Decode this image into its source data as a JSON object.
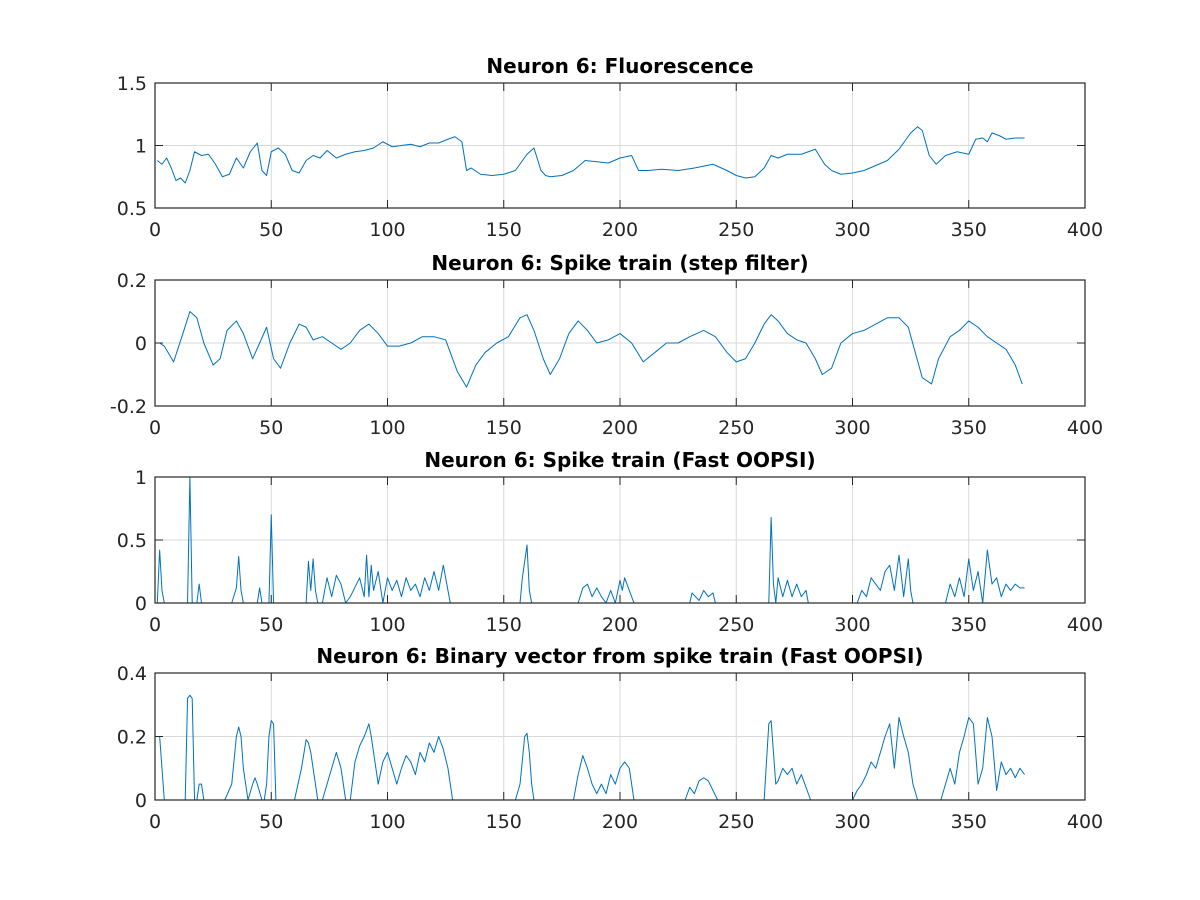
{
  "chart_data": [
    {
      "type": "line",
      "title": "Neuron 6: Fluorescence",
      "xlabel": "",
      "ylabel": "",
      "xlim": [
        0,
        400
      ],
      "ylim": [
        0.5,
        1.5
      ],
      "xticks": [
        0,
        50,
        100,
        150,
        200,
        250,
        300,
        350,
        400
      ],
      "yticks": [
        0.5,
        1,
        1.5
      ],
      "xtick_labels": [
        "0",
        "50",
        "100",
        "150",
        "200",
        "250",
        "300",
        "350",
        "400"
      ],
      "ytick_labels": [
        "0.5",
        "1",
        "1.5"
      ],
      "grid": true,
      "series": [
        {
          "color": "#0072bd",
          "x": [
            1,
            3,
            5,
            7,
            9,
            11,
            13,
            15,
            17,
            20,
            23,
            26,
            29,
            32,
            35,
            38,
            41,
            44,
            46,
            48,
            50,
            53,
            56,
            59,
            62,
            65,
            68,
            71,
            74,
            78,
            82,
            86,
            90,
            94,
            98,
            102,
            106,
            110,
            114,
            118,
            122,
            126,
            129,
            132,
            134,
            136,
            140,
            145,
            150,
            155,
            160,
            163,
            166,
            168,
            170,
            175,
            180,
            185,
            190,
            195,
            200,
            205,
            208,
            212,
            218,
            225,
            232,
            240,
            246,
            250,
            254,
            258,
            262,
            265,
            268,
            272,
            278,
            284,
            288,
            291,
            295,
            300,
            305,
            310,
            315,
            320,
            325,
            328,
            330,
            333,
            336,
            340,
            345,
            350,
            353,
            356,
            358,
            360,
            363,
            366,
            370,
            374
          ],
          "y": [
            0.88,
            0.85,
            0.9,
            0.82,
            0.72,
            0.74,
            0.7,
            0.8,
            0.95,
            0.92,
            0.93,
            0.85,
            0.75,
            0.77,
            0.9,
            0.82,
            0.95,
            1.02,
            0.8,
            0.76,
            0.95,
            0.98,
            0.93,
            0.8,
            0.78,
            0.88,
            0.92,
            0.9,
            0.96,
            0.9,
            0.93,
            0.95,
            0.96,
            0.98,
            1.03,
            0.99,
            1.0,
            1.01,
            0.99,
            1.02,
            1.02,
            1.05,
            1.07,
            1.03,
            0.8,
            0.82,
            0.77,
            0.76,
            0.77,
            0.8,
            0.93,
            0.98,
            0.8,
            0.76,
            0.75,
            0.76,
            0.8,
            0.88,
            0.87,
            0.86,
            0.9,
            0.92,
            0.8,
            0.8,
            0.81,
            0.8,
            0.82,
            0.85,
            0.8,
            0.76,
            0.74,
            0.75,
            0.82,
            0.92,
            0.9,
            0.93,
            0.93,
            0.97,
            0.85,
            0.8,
            0.77,
            0.78,
            0.8,
            0.84,
            0.88,
            0.97,
            1.1,
            1.15,
            1.12,
            0.92,
            0.85,
            0.92,
            0.95,
            0.93,
            1.05,
            1.06,
            1.03,
            1.1,
            1.08,
            1.05,
            1.06,
            1.06
          ]
        }
      ]
    },
    {
      "type": "line",
      "title": "Neuron 6: Spike train (step filter)",
      "xlabel": "",
      "ylabel": "",
      "xlim": [
        0,
        400
      ],
      "ylim": [
        -0.2,
        0.2
      ],
      "xticks": [
        0,
        50,
        100,
        150,
        200,
        250,
        300,
        350,
        400
      ],
      "yticks": [
        -0.2,
        0,
        0.2
      ],
      "xtick_labels": [
        "0",
        "50",
        "100",
        "150",
        "200",
        "250",
        "300",
        "350",
        "400"
      ],
      "ytick_labels": [
        "-0.2",
        "0",
        "0.2"
      ],
      "grid": true,
      "series": [
        {
          "color": "#0072bd",
          "x": [
            2,
            4,
            8,
            12,
            15,
            18,
            21,
            25,
            28,
            31,
            35,
            38,
            42,
            45,
            48,
            51,
            54,
            58,
            62,
            65,
            68,
            72,
            76,
            80,
            84,
            88,
            92,
            96,
            100,
            105,
            110,
            115,
            120,
            125,
            130,
            134,
            138,
            142,
            147,
            152,
            157,
            160,
            163,
            167,
            170,
            174,
            178,
            182,
            186,
            190,
            195,
            200,
            205,
            210,
            215,
            220,
            225,
            230,
            236,
            241,
            246,
            250,
            254,
            258,
            262,
            265,
            268,
            272,
            276,
            280,
            284,
            287,
            291,
            295,
            300,
            305,
            310,
            315,
            320,
            324,
            327,
            330,
            334,
            337,
            342,
            346,
            350,
            354,
            358,
            362,
            366,
            370,
            373
          ],
          "y": [
            0,
            -0.01,
            -0.06,
            0.03,
            0.1,
            0.08,
            0.0,
            -0.07,
            -0.05,
            0.04,
            0.07,
            0.03,
            -0.05,
            0.0,
            0.05,
            -0.05,
            -0.08,
            0.0,
            0.06,
            0.05,
            0.01,
            0.02,
            0.0,
            -0.02,
            0.0,
            0.04,
            0.06,
            0.03,
            -0.01,
            -0.01,
            0.0,
            0.02,
            0.02,
            0.01,
            -0.09,
            -0.14,
            -0.07,
            -0.03,
            0.0,
            0.02,
            0.08,
            0.09,
            0.04,
            -0.05,
            -0.1,
            -0.05,
            0.03,
            0.07,
            0.04,
            0.0,
            0.01,
            0.03,
            0.0,
            -0.06,
            -0.03,
            0.0,
            0.0,
            0.02,
            0.04,
            0.02,
            -0.03,
            -0.06,
            -0.05,
            0.0,
            0.06,
            0.09,
            0.07,
            0.03,
            0.01,
            0.0,
            -0.05,
            -0.1,
            -0.08,
            0.0,
            0.03,
            0.04,
            0.06,
            0.08,
            0.08,
            0.05,
            -0.03,
            -0.11,
            -0.13,
            -0.05,
            0.02,
            0.04,
            0.07,
            0.05,
            0.02,
            0.0,
            -0.02,
            -0.07,
            -0.13
          ]
        }
      ]
    },
    {
      "type": "line",
      "title": "Neuron 6: Spike train (Fast OOPSI)",
      "xlabel": "",
      "ylabel": "",
      "xlim": [
        0,
        400
      ],
      "ylim": [
        0,
        1
      ],
      "xticks": [
        0,
        50,
        100,
        150,
        200,
        250,
        300,
        350,
        400
      ],
      "yticks": [
        0,
        0.5,
        1
      ],
      "xtick_labels": [
        "0",
        "50",
        "100",
        "150",
        "200",
        "250",
        "300",
        "350",
        "400"
      ],
      "ytick_labels": [
        "0",
        "0.5",
        "1"
      ],
      "grid": true,
      "series": [
        {
          "color": "#0072bd",
          "x": [
            1,
            2,
            3,
            4,
            10,
            14,
            15,
            16,
            18,
            19,
            20,
            33,
            35,
            36,
            37,
            38,
            40,
            44,
            45,
            46,
            49,
            50,
            51,
            52,
            65,
            66,
            67,
            68,
            69,
            70,
            72,
            74,
            76,
            78,
            80,
            82,
            84,
            88,
            90,
            91,
            92,
            93,
            94,
            96,
            98,
            100,
            102,
            104,
            106,
            108,
            110,
            112,
            114,
            116,
            118,
            120,
            122,
            124,
            126,
            127,
            157,
            158,
            160,
            161,
            162,
            182,
            184,
            186,
            188,
            190,
            192,
            194,
            196,
            198,
            200,
            201,
            202,
            204,
            206,
            230,
            231,
            234,
            236,
            238,
            240,
            241,
            264,
            265,
            266,
            267,
            268,
            270,
            272,
            274,
            276,
            278,
            280,
            281,
            302,
            304,
            306,
            308,
            312,
            314,
            316,
            318,
            320,
            322,
            324,
            325,
            326,
            340,
            342,
            344,
            346,
            348,
            350,
            352,
            354,
            356,
            358,
            360,
            362,
            364,
            366,
            368,
            370,
            372,
            374
          ],
          "y": [
            0,
            0.42,
            0.1,
            0,
            0,
            0,
            1.0,
            0,
            0,
            0.15,
            0,
            0,
            0.12,
            0.37,
            0.1,
            0,
            0,
            0,
            0.12,
            0,
            0,
            0.7,
            0,
            0,
            0,
            0.33,
            0.1,
            0.35,
            0.1,
            0,
            0,
            0.2,
            0.05,
            0.22,
            0.15,
            0.0,
            0.05,
            0.2,
            0.05,
            0.38,
            0.05,
            0.3,
            0.1,
            0.25,
            0,
            0.2,
            0.1,
            0.18,
            0.05,
            0.2,
            0.1,
            0.15,
            0.05,
            0.2,
            0.1,
            0.25,
            0.1,
            0.3,
            0.1,
            0,
            0,
            0.2,
            0.46,
            0.1,
            0,
            0,
            0.12,
            0.15,
            0.05,
            0.12,
            0.05,
            0.0,
            0.1,
            0.0,
            0.18,
            0.1,
            0.2,
            0.1,
            0,
            0,
            0.08,
            0.02,
            0.1,
            0.05,
            0.08,
            0,
            0,
            0.68,
            0.15,
            0,
            0.2,
            0.05,
            0.18,
            0.05,
            0.15,
            0.05,
            0.1,
            0,
            0,
            0.1,
            0.05,
            0.2,
            0.1,
            0.25,
            0.3,
            0.1,
            0.38,
            0.05,
            0.35,
            0.1,
            0,
            0,
            0.15,
            0.05,
            0.2,
            0.05,
            0.35,
            0.1,
            0.25,
            0.0,
            0.42,
            0.15,
            0.2,
            0.05,
            0.15,
            0.1,
            0.15,
            0.12,
            0.12
          ]
        }
      ]
    },
    {
      "type": "line",
      "title": "Neuron 6: Binary vector from spike train (Fast OOPSI)",
      "xlabel": "",
      "ylabel": "",
      "xlim": [
        0,
        400
      ],
      "ylim": [
        0,
        0.4
      ],
      "xticks": [
        0,
        50,
        100,
        150,
        200,
        250,
        300,
        350,
        400
      ],
      "yticks": [
        0,
        0.2,
        0.4
      ],
      "xtick_labels": [
        "0",
        "50",
        "100",
        "150",
        "200",
        "250",
        "300",
        "350",
        "400"
      ],
      "ytick_labels": [
        "0",
        "0.2",
        "0.4"
      ],
      "grid": true,
      "series": [
        {
          "color": "#0072bd",
          "x": [
            1,
            2,
            4,
            13,
            14,
            15,
            16,
            17,
            18,
            19,
            20,
            21,
            22,
            30,
            33,
            35,
            36,
            37,
            38,
            40,
            42,
            43,
            44,
            46,
            47,
            48,
            49,
            50,
            51,
            52,
            60,
            63,
            65,
            66,
            67,
            68,
            70,
            72,
            74,
            76,
            78,
            80,
            81,
            82,
            84,
            86,
            88,
            90,
            91,
            92,
            93,
            94,
            96,
            98,
            100,
            102,
            104,
            106,
            108,
            110,
            112,
            114,
            116,
            118,
            120,
            122,
            124,
            126,
            128,
            155,
            157,
            159,
            160,
            161,
            162,
            163,
            180,
            182,
            184,
            186,
            188,
            190,
            192,
            194,
            196,
            198,
            200,
            202,
            204,
            206,
            228,
            230,
            232,
            234,
            236,
            238,
            240,
            242,
            262,
            264,
            265,
            266,
            267,
            268,
            270,
            272,
            274,
            276,
            278,
            280,
            282,
            300,
            302,
            304,
            306,
            308,
            310,
            312,
            314,
            316,
            318,
            320,
            322,
            324,
            326,
            328,
            338,
            340,
            342,
            344,
            346,
            348,
            350,
            352,
            354,
            356,
            358,
            360,
            362,
            364,
            366,
            368,
            370,
            372,
            374
          ],
          "y": [
            0.2,
            0.2,
            0,
            0,
            0.32,
            0.33,
            0.32,
            0,
            0,
            0.05,
            0.05,
            0,
            0,
            0,
            0.05,
            0.2,
            0.23,
            0.2,
            0.1,
            0,
            0.05,
            0.07,
            0.05,
            0,
            0,
            0.05,
            0.2,
            0.25,
            0.24,
            0,
            0,
            0.1,
            0.19,
            0.18,
            0.15,
            0.1,
            0,
            0,
            0.05,
            0.1,
            0.15,
            0.1,
            0.05,
            0,
            0,
            0.12,
            0.17,
            0.2,
            0.22,
            0.24,
            0.2,
            0.15,
            0.05,
            0.12,
            0.15,
            0.1,
            0.05,
            0.1,
            0.14,
            0.12,
            0.08,
            0.15,
            0.12,
            0.18,
            0.15,
            0.2,
            0.16,
            0.1,
            0,
            0,
            0.05,
            0.2,
            0.21,
            0.15,
            0.05,
            0,
            0,
            0.08,
            0.14,
            0.1,
            0.05,
            0.02,
            0.05,
            0.02,
            0.08,
            0.05,
            0.1,
            0.12,
            0.1,
            0,
            0,
            0.04,
            0.02,
            0.06,
            0.07,
            0.06,
            0.03,
            0,
            0,
            0.24,
            0.25,
            0.15,
            0.05,
            0.06,
            0.1,
            0.08,
            0.1,
            0.05,
            0.08,
            0.04,
            0,
            0,
            0.03,
            0.05,
            0.08,
            0.12,
            0.1,
            0.15,
            0.2,
            0.24,
            0.1,
            0.26,
            0.2,
            0.15,
            0.05,
            0,
            0,
            0.05,
            0.1,
            0.05,
            0.15,
            0.2,
            0.26,
            0.24,
            0.05,
            0.1,
            0.26,
            0.2,
            0.03,
            0.12,
            0.08,
            0.1,
            0.07,
            0.1,
            0.08
          ]
        }
      ]
    }
  ]
}
